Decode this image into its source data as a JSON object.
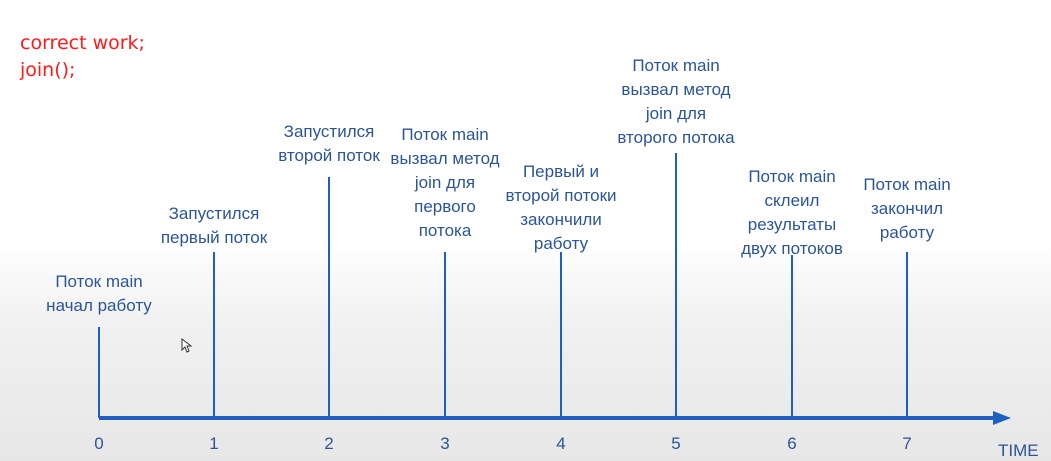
{
  "code_note": {
    "lines": [
      "correct work;",
      "join();"
    ]
  },
  "axis": {
    "title": "TIME",
    "color": "#1f5fbf",
    "text_color": "#2b5595"
  },
  "ticks": [
    "0",
    "1",
    "2",
    "3",
    "4",
    "5",
    "6",
    "7"
  ],
  "events": [
    {
      "time": 0,
      "lines": [
        "Поток main",
        "начал работу"
      ]
    },
    {
      "time": 1,
      "lines": [
        "Запустился",
        "первый поток"
      ]
    },
    {
      "time": 2,
      "lines": [
        "Запустился",
        "второй поток"
      ]
    },
    {
      "time": 3,
      "lines": [
        "Поток main",
        "вызвал метод",
        "join для",
        "первого",
        "потока"
      ]
    },
    {
      "time": 4,
      "lines": [
        "Первый и",
        "второй потоки",
        "закончили",
        "работу"
      ]
    },
    {
      "time": 5,
      "lines": [
        "Поток main",
        "вызвал метод",
        "join для",
        "второго потока"
      ]
    },
    {
      "time": 6,
      "lines": [
        "Поток main",
        "склеил",
        "результаты",
        "двух потоков"
      ]
    },
    {
      "time": 7,
      "lines": [
        "Поток main",
        "закончил",
        "работу"
      ]
    }
  ]
}
